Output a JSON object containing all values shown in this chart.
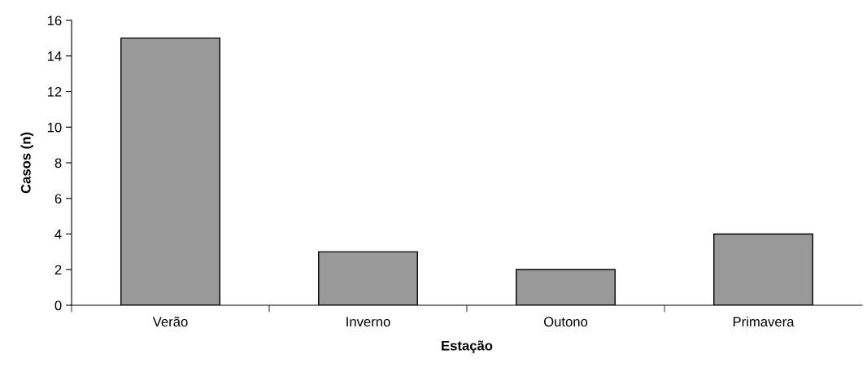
{
  "chart_data": {
    "type": "bar",
    "xlabel": "Estação",
    "ylabel": "Casos (n)",
    "categories": [
      "Verão",
      "Inverno",
      "Outono",
      "Primavera"
    ],
    "values": [
      15,
      3,
      2,
      4
    ],
    "color": "#999999",
    "ylim": [
      0,
      16
    ],
    "yticks": [
      0,
      2,
      4,
      6,
      8,
      10,
      12,
      14,
      16
    ],
    "grid": false
  }
}
